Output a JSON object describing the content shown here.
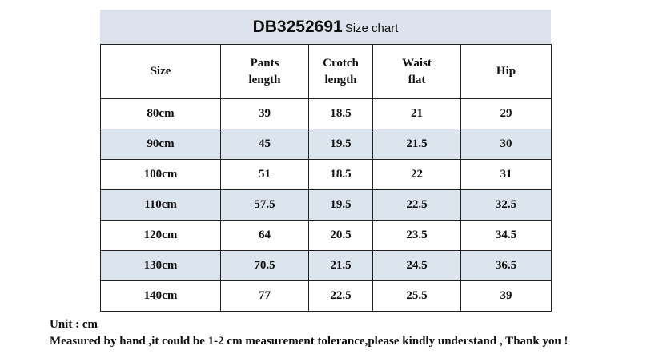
{
  "title": {
    "code": "DB3252691",
    "suffix": "Size chart"
  },
  "table": {
    "header": [
      [
        "Size"
      ],
      [
        "Pants",
        "length"
      ],
      [
        "Crotch",
        "length"
      ],
      [
        "Waist",
        "flat"
      ],
      [
        "Hip"
      ]
    ],
    "rows": [
      [
        "80cm",
        "39",
        "18.5",
        "21",
        "29"
      ],
      [
        "90cm",
        "45",
        "19.5",
        "21.5",
        "30"
      ],
      [
        "100cm",
        "51",
        "18.5",
        "22",
        "31"
      ],
      [
        "110cm",
        "57.5",
        "19.5",
        "22.5",
        "32.5"
      ],
      [
        "120cm",
        "64",
        "20.5",
        "23.5",
        "34.5"
      ],
      [
        "130cm",
        "70.5",
        "21.5",
        "24.5",
        "36.5"
      ],
      [
        "140cm",
        "77",
        "22.5",
        "25.5",
        "39"
      ]
    ]
  },
  "notes": [
    "Unit : cm",
    "Measured by hand ,it could be 1-2 cm measurement tolerance,please kindly understand , Thank you !"
  ]
}
